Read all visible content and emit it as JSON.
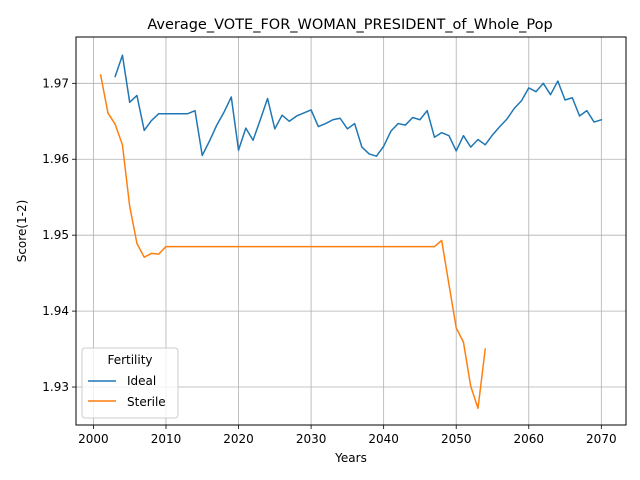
{
  "chart_data": {
    "type": "line",
    "title": "Average_VOTE_FOR_WOMAN_PRESIDENT_of_Whole_Pop",
    "xlabel": "Years",
    "ylabel": "Score(1-2)",
    "xlim": [
      1997.6,
      2073.4
    ],
    "ylim": [
      1.925,
      1.9761
    ],
    "xticks": [
      2000,
      2010,
      2020,
      2030,
      2040,
      2050,
      2060,
      2070
    ],
    "yticks": [
      1.93,
      1.94,
      1.95,
      1.96,
      1.97
    ],
    "ytick_labels": [
      "1.93",
      "1.94",
      "1.95",
      "1.96",
      "1.97"
    ],
    "grid": true,
    "legend": {
      "title": "Fertility",
      "placement": "lower-left"
    },
    "series": [
      {
        "name": "Ideal",
        "color": "#1f77b4",
        "x": [
          2003,
          2004,
          2005,
          2006,
          2007,
          2008,
          2009,
          2010,
          2011,
          2012,
          2013,
          2014,
          2015,
          2016,
          2017,
          2018,
          2019,
          2020,
          2021,
          2022,
          2023,
          2024,
          2025,
          2026,
          2027,
          2028,
          2029,
          2030,
          2031,
          2032,
          2033,
          2034,
          2035,
          2036,
          2037,
          2038,
          2039,
          2040,
          2041,
          2042,
          2043,
          2044,
          2045,
          2046,
          2047,
          2048,
          2049,
          2050,
          2051,
          2052,
          2053,
          2054,
          2055,
          2056,
          2057,
          2058,
          2059,
          2060,
          2061,
          2062,
          2063,
          2064,
          2065,
          2066,
          2067,
          2068,
          2069,
          2070
        ],
        "values": [
          1.9709,
          1.9737,
          1.9675,
          1.9684,
          1.9638,
          1.9651,
          1.966,
          1.966,
          1.966,
          1.966,
          1.966,
          1.9664,
          1.9605,
          1.9624,
          1.9645,
          1.9662,
          1.9682,
          1.9612,
          1.9641,
          1.9625,
          1.9652,
          1.968,
          1.964,
          1.9658,
          1.965,
          1.9657,
          1.9661,
          1.9665,
          1.9643,
          1.9647,
          1.9652,
          1.9654,
          1.964,
          1.9647,
          1.9616,
          1.9607,
          1.9604,
          1.9617,
          1.9637,
          1.9647,
          1.9645,
          1.9655,
          1.9652,
          1.9664,
          1.9629,
          1.9635,
          1.9631,
          1.9611,
          1.9631,
          1.9616,
          1.9626,
          1.9619,
          1.9632,
          1.9643,
          1.9653,
          1.9667,
          1.9677,
          1.9694,
          1.9689,
          1.97,
          1.9685,
          1.9703,
          1.9678,
          1.9681,
          1.9657,
          1.9664,
          1.9649,
          1.9652
        ]
      },
      {
        "name": "Sterile",
        "color": "#ff7f0e",
        "x": [
          2001,
          2002,
          2003,
          2004,
          2005,
          2006,
          2007,
          2008,
          2009,
          2010,
          2011,
          2012,
          2013,
          2014,
          2015,
          2016,
          2017,
          2018,
          2019,
          2020,
          2021,
          2022,
          2023,
          2024,
          2025,
          2026,
          2027,
          2028,
          2029,
          2030,
          2031,
          2032,
          2033,
          2034,
          2035,
          2036,
          2037,
          2038,
          2039,
          2040,
          2041,
          2042,
          2043,
          2044,
          2045,
          2046,
          2047,
          2048,
          2049,
          2050,
          2051,
          2052,
          2053,
          2054
        ],
        "values": [
          1.9711,
          1.9661,
          1.9646,
          1.9619,
          1.9538,
          1.9489,
          1.9471,
          1.9476,
          1.9475,
          1.9485,
          1.9485,
          1.9485,
          1.9485,
          1.9485,
          1.9485,
          1.9485,
          1.9485,
          1.9485,
          1.9485,
          1.9485,
          1.9485,
          1.9485,
          1.9485,
          1.9485,
          1.9485,
          1.9485,
          1.9485,
          1.9485,
          1.9485,
          1.9485,
          1.9485,
          1.9485,
          1.9485,
          1.9485,
          1.9485,
          1.9485,
          1.9485,
          1.9485,
          1.9485,
          1.9485,
          1.9485,
          1.9485,
          1.9485,
          1.9485,
          1.9485,
          1.9485,
          1.9485,
          1.9493,
          1.9435,
          1.9378,
          1.9359,
          1.9301,
          1.9272,
          1.935
        ]
      }
    ]
  }
}
